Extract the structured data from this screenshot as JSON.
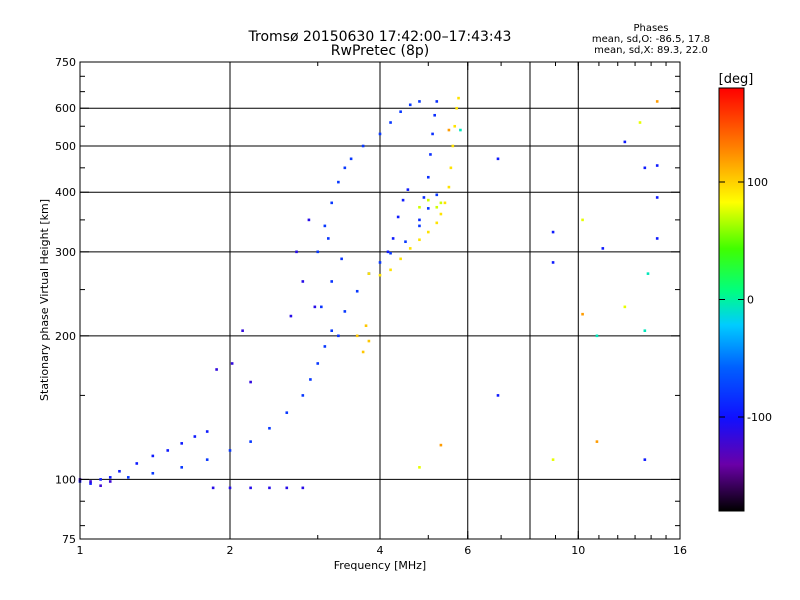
{
  "chart_data": {
    "type": "scatter",
    "title": "Tromsø 20150630 17:42:00–17:43:43",
    "subtitle": "RwPretec (8p)",
    "xlabel": "Frequency [MHz]",
    "ylabel": "Stationary phase Virtual Height [km]",
    "x_scale": "log",
    "y_scale": "log",
    "xlim": [
      1,
      16
    ],
    "ylim": [
      75,
      750
    ],
    "x_ticks": [
      1,
      2,
      4,
      6,
      10,
      16
    ],
    "x_tick_labels": [
      "1",
      "2",
      "4",
      "6",
      "10",
      "16"
    ],
    "x_gridlines": [
      2,
      4,
      6,
      8,
      10
    ],
    "y_ticks": [
      75,
      100,
      200,
      300,
      400,
      500,
      600,
      750
    ],
    "y_tick_labels": [
      "75",
      "100",
      "200",
      "300",
      "400",
      "500",
      "600",
      "750"
    ],
    "y_gridlines": [
      100,
      200,
      300,
      400,
      500,
      600
    ],
    "grid": true,
    "colorbar": {
      "label": "[deg]",
      "range": [
        -180,
        180
      ],
      "ticks": [
        100,
        0,
        -100
      ],
      "tick_labels": [
        "100",
        "0",
        "-100"
      ]
    },
    "stats": {
      "heading": "Phases",
      "line_o": "mean, sd,O: -86.5, 17.8",
      "line_x": "mean, sd,X:  89.3, 22.0"
    },
    "series": [
      {
        "trace": [
          [
            1.0,
            99
          ],
          [
            1.05,
            98
          ],
          [
            1.1,
            100
          ],
          [
            1.15,
            101
          ],
          [
            1.2,
            104
          ],
          [
            1.3,
            108
          ],
          [
            1.4,
            112
          ],
          [
            1.5,
            115
          ],
          [
            1.6,
            119
          ],
          [
            1.7,
            123
          ],
          [
            1.8,
            126
          ]
        ],
        "phase": -95
      },
      {
        "trace": [
          [
            1.25,
            101
          ],
          [
            1.4,
            103
          ],
          [
            1.6,
            106
          ],
          [
            1.8,
            110
          ],
          [
            2.0,
            115
          ],
          [
            2.2,
            120
          ],
          [
            2.4,
            128
          ],
          [
            2.6,
            138
          ],
          [
            2.8,
            150
          ],
          [
            2.9,
            162
          ],
          [
            3.0,
            175
          ],
          [
            3.1,
            190
          ],
          [
            3.2,
            205
          ],
          [
            3.4,
            225
          ],
          [
            3.6,
            248
          ],
          [
            3.8,
            270
          ],
          [
            4.0,
            285
          ],
          [
            4.2,
            298
          ],
          [
            4.5,
            315
          ],
          [
            4.8,
            340
          ],
          [
            5.0,
            370
          ],
          [
            5.2,
            395
          ]
        ],
        "phase": -80
      },
      {
        "trace": [
          [
            3.0,
            300
          ],
          [
            3.1,
            340
          ],
          [
            3.2,
            380
          ],
          [
            3.3,
            420
          ],
          [
            3.4,
            450
          ],
          [
            3.5,
            470
          ],
          [
            3.7,
            500
          ],
          [
            4.0,
            530
          ],
          [
            4.2,
            560
          ],
          [
            4.4,
            590
          ],
          [
            4.6,
            610
          ],
          [
            4.8,
            620
          ]
        ],
        "phase": -80
      },
      {
        "trace": [
          [
            4.8,
            350
          ],
          [
            4.9,
            390
          ],
          [
            5.0,
            430
          ],
          [
            5.05,
            480
          ],
          [
            5.1,
            530
          ],
          [
            5.15,
            580
          ],
          [
            5.2,
            620
          ]
        ],
        "phase": -85
      },
      {
        "trace": [
          [
            3.8,
            270
          ],
          [
            4.0,
            268
          ],
          [
            4.2,
            275
          ],
          [
            4.4,
            290
          ],
          [
            4.6,
            305
          ],
          [
            4.8,
            318
          ],
          [
            5.0,
            330
          ],
          [
            5.2,
            345
          ],
          [
            5.3,
            360
          ],
          [
            5.4,
            380
          ],
          [
            5.5,
            410
          ],
          [
            5.55,
            450
          ],
          [
            5.6,
            500
          ],
          [
            5.65,
            550
          ],
          [
            5.7,
            600
          ],
          [
            5.75,
            630
          ]
        ],
        "phase": 95
      },
      {
        "trace": [
          [
            1.85,
            96
          ],
          [
            2.0,
            96
          ],
          [
            2.2,
            96
          ],
          [
            2.4,
            96
          ],
          [
            2.6,
            96
          ],
          [
            2.8,
            96
          ]
        ],
        "phase": -110
      },
      {
        "trace": [
          [
            1.0,
            100
          ],
          [
            1.05,
            99
          ],
          [
            1.1,
            97
          ],
          [
            1.15,
            99
          ]
        ],
        "phase": -120
      },
      {
        "trace": [
          [
            4.8,
            372
          ],
          [
            5.0,
            385
          ],
          [
            5.2,
            372
          ],
          [
            5.3,
            380
          ]
        ],
        "phase": 75
      },
      {
        "trace": [
          [
            3.6,
            200
          ],
          [
            3.7,
            185
          ],
          [
            3.75,
            210
          ],
          [
            3.8,
            195
          ]
        ],
        "phase": 105
      },
      {
        "trace": [
          [
            1.88,
            170
          ],
          [
            2.02,
            175
          ],
          [
            2.2,
            160
          ],
          [
            2.12,
            205
          ]
        ],
        "phase": -115
      },
      {
        "trace": [
          [
            2.65,
            220
          ],
          [
            2.72,
            300
          ],
          [
            2.8,
            260
          ],
          [
            2.88,
            350
          ],
          [
            2.96,
            230
          ]
        ],
        "phase": -110
      },
      {
        "trace": [
          [
            3.05,
            230
          ],
          [
            3.2,
            260
          ],
          [
            3.35,
            290
          ],
          [
            3.3,
            200
          ],
          [
            3.15,
            320
          ]
        ],
        "phase": -82
      },
      {
        "trace": [
          [
            4.15,
            300
          ],
          [
            4.25,
            320
          ],
          [
            4.35,
            355
          ],
          [
            4.45,
            385
          ],
          [
            4.55,
            405
          ]
        ],
        "phase": -95
      },
      {
        "trace": [
          [
            6.9,
            470
          ],
          [
            6.9,
            150
          ],
          [
            8.9,
            330
          ],
          [
            8.9,
            285
          ],
          [
            12.4,
            510
          ],
          [
            13.6,
            450
          ],
          [
            13.6,
            110
          ],
          [
            11.2,
            305
          ],
          [
            14.4,
            390
          ],
          [
            14.4,
            455
          ],
          [
            14.4,
            320
          ]
        ],
        "phase": -95
      },
      {
        "trace": [
          [
            5.5,
            540
          ],
          [
            5.3,
            118
          ],
          [
            10.2,
            222
          ],
          [
            10.9,
            120
          ],
          [
            14.4,
            620
          ]
        ],
        "phase": 120
      },
      {
        "trace": [
          [
            4.8,
            106
          ],
          [
            8.9,
            110
          ],
          [
            10.2,
            350
          ],
          [
            13.3,
            560
          ],
          [
            12.4,
            230
          ]
        ],
        "phase": 80
      },
      {
        "trace": [
          [
            5.8,
            540
          ],
          [
            13.8,
            270
          ],
          [
            10.9,
            200
          ],
          [
            13.6,
            205
          ]
        ],
        "phase": -5
      }
    ]
  }
}
